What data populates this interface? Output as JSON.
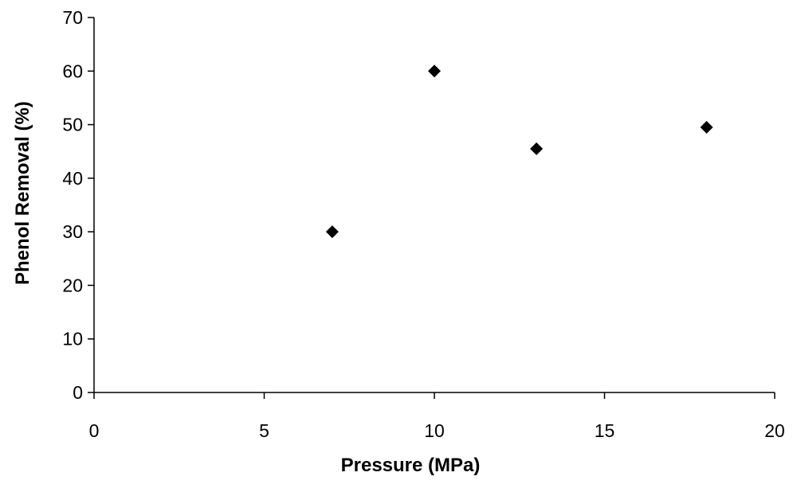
{
  "chart_data": {
    "type": "scatter",
    "title": "",
    "xlabel": "Pressure (MPa)",
    "ylabel": "Phenol Removal (%)",
    "xlim": [
      0,
      20
    ],
    "ylim": [
      0,
      70
    ],
    "xticks": [
      0,
      5,
      10,
      15,
      20
    ],
    "yticks": [
      0,
      10,
      20,
      30,
      40,
      50,
      60,
      70
    ],
    "grid": false,
    "legend": "none",
    "marker": "diamond",
    "marker_color": "#000000",
    "series": [
      {
        "points": [
          {
            "x": 7,
            "y": 30
          },
          {
            "x": 10,
            "y": 60
          },
          {
            "x": 13,
            "y": 45.5
          },
          {
            "x": 18,
            "y": 49.5
          }
        ]
      }
    ]
  }
}
